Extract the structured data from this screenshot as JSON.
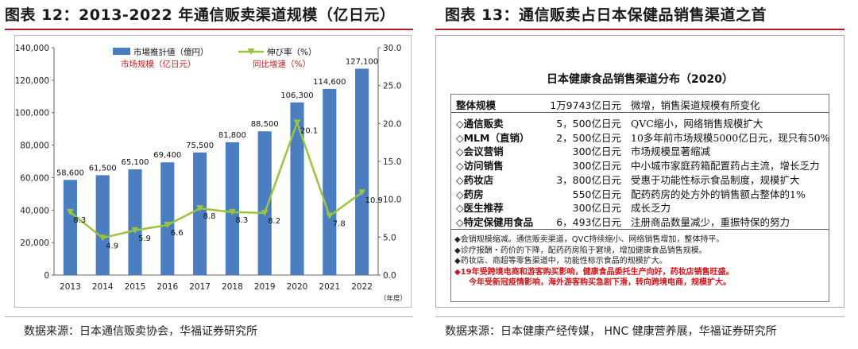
{
  "left": {
    "title": "图表 12：2013-2022 年通信贩卖渠道规模（亿日元）",
    "source": "数据来源：日本通信贩卖协会，华福证券研究所"
  },
  "right": {
    "title": "图表 13：通信贩卖占日本保健品销售渠道之首",
    "source": "数据来源：日本健康产经传媒，  HNC 健康营养展，华福证券研究所",
    "table_title": "日本健康食品销售渠道分布（2020）",
    "total": {
      "channel": "整体规模",
      "value": "1万9743亿日元",
      "note": "微增，销售渠道规模有所变化"
    },
    "rows": [
      {
        "channel": "◇通信贩卖",
        "value": "5，500亿日元",
        "note": "QVC缩小，网络销售规模扩大"
      },
      {
        "channel": "◇MLM（直销）",
        "value": "2，500亿日元",
        "note": "10多年前市场规模5000亿日元，现只有50%"
      },
      {
        "channel": "◇会议营销",
        "value": "300亿日元",
        "note": "市场规模显著缩减"
      },
      {
        "channel": "◇访问销售",
        "value": "300亿日元",
        "note": "中小城市家庭药箱配置药占主流，增长乏力"
      },
      {
        "channel": "◇药妆店",
        "value": "3，800亿日元",
        "note": "受惠于功能性标示食品制度，规模扩大"
      },
      {
        "channel": "◇药房",
        "value": "550亿日元",
        "note": "配药药房的处方外的销售额占整体的1%"
      },
      {
        "channel": "◇医生推荐",
        "value": "300亿日元",
        "note": "成长乏力"
      },
      {
        "channel": "◇特定保健用食品",
        "value": "6，493亿日元",
        "note": "注册商品数量减少，重振特保的努力"
      }
    ],
    "notes": [
      "◆会销规模缩减。通信贩卖渠道，QVC持续缩小、网络销售增加，整体持平。",
      "◆诊疗报酬・药价的下降，配药药房陷于窘境，增加健康食品销售规模。",
      "◆药妆店、商超等零售渠道中，功能性标示食品的规模扩大。"
    ],
    "notes_red": [
      "◆19年受跨境电商和游客购买影响，健康食品委托生产向好，药妆店销售旺盛。",
      "今年受新冠疫情影响，海外游客购买急剧下滑，转向跨境电商，规模扩大。"
    ]
  },
  "chart_data": {
    "type": "bar",
    "categories": [
      "2013",
      "2014",
      "2015",
      "2016",
      "2017",
      "2018",
      "2019",
      "2020",
      "2021",
      "2022"
    ],
    "series": [
      {
        "name": "市場推計値（億円）",
        "type": "bar",
        "axis": "left",
        "color": "#4a7ec0",
        "values": [
          58600,
          61500,
          65100,
          69400,
          75500,
          81800,
          88500,
          106300,
          114600,
          127100
        ],
        "labels": [
          "58,600",
          "61,500",
          "65,100",
          "69,400",
          "75,500",
          "81,800",
          "88,500",
          "106,300",
          "114,600",
          "127,100"
        ]
      },
      {
        "name": "伸び率（%）",
        "type": "line",
        "axis": "right",
        "color": "#9ac43c",
        "values": [
          8.3,
          4.9,
          5.9,
          6.6,
          8.8,
          8.3,
          8.2,
          20.1,
          7.8,
          10.9
        ]
      }
    ],
    "legend_cn": [
      "市场规模（亿日元）",
      "同比增速（%）"
    ],
    "y_left": {
      "min": 0,
      "max": 140000,
      "ticks": [
        "0",
        "20,000",
        "40,000",
        "60,000",
        "80,000",
        "100,000",
        "120,000",
        "140,000"
      ]
    },
    "y_right": {
      "min": 0,
      "max": 30,
      "ticks": [
        "0.0",
        "5.0",
        "10.0",
        "15.0",
        "20.0",
        "25.0",
        "30.0"
      ]
    },
    "xlabel": "（年度）",
    "legend_position": "top"
  }
}
